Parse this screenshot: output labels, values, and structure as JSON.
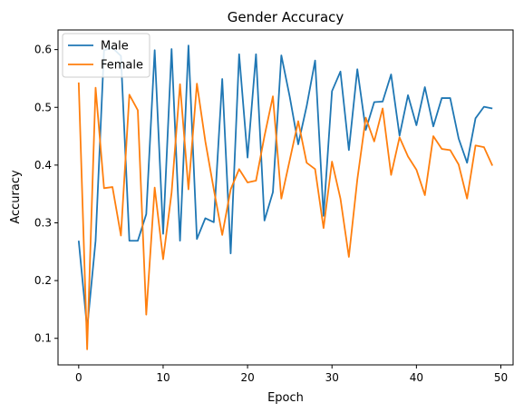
{
  "chart_data": {
    "type": "line",
    "title": "Gender Accuracy",
    "xlabel": "Epoch",
    "ylabel": "Accuracy",
    "xlim": [
      -2.45,
      51.45
    ],
    "ylim": [
      0.054,
      0.634
    ],
    "xticks": [
      0,
      10,
      20,
      30,
      40,
      50
    ],
    "yticks": [
      0.1,
      0.2,
      0.3,
      0.4,
      0.5,
      0.6
    ],
    "grid": false,
    "legend_position": "top-left",
    "x": [
      0,
      1,
      2,
      3,
      4,
      5,
      6,
      7,
      8,
      9,
      10,
      11,
      12,
      13,
      14,
      15,
      16,
      17,
      18,
      19,
      20,
      21,
      22,
      23,
      24,
      25,
      26,
      27,
      28,
      29,
      30,
      31,
      32,
      33,
      34,
      35,
      36,
      37,
      38,
      39,
      40,
      41,
      42,
      43,
      44,
      45,
      46,
      47,
      48,
      49
    ],
    "series": [
      {
        "name": "Male",
        "color": "#1f77b4",
        "values": [
          0.269,
          0.117,
          0.269,
          0.599,
          0.603,
          0.589,
          0.269,
          0.269,
          0.315,
          0.599,
          0.281,
          0.601,
          0.269,
          0.607,
          0.272,
          0.308,
          0.301,
          0.549,
          0.247,
          0.592,
          0.413,
          0.592,
          0.304,
          0.353,
          0.59,
          0.518,
          0.436,
          0.502,
          0.581,
          0.312,
          0.528,
          0.562,
          0.426,
          0.566,
          0.461,
          0.509,
          0.51,
          0.557,
          0.451,
          0.521,
          0.469,
          0.535,
          0.467,
          0.516,
          0.516,
          0.446,
          0.404,
          0.481,
          0.501,
          0.498
        ]
      },
      {
        "name": "Female",
        "color": "#ff7f0e",
        "values": [
          0.543,
          0.081,
          0.534,
          0.36,
          0.362,
          0.278,
          0.522,
          0.495,
          0.141,
          0.361,
          0.237,
          0.352,
          0.54,
          0.358,
          0.541,
          0.441,
          0.358,
          0.279,
          0.358,
          0.393,
          0.37,
          0.373,
          0.45,
          0.519,
          0.342,
          0.409,
          0.476,
          0.404,
          0.393,
          0.291,
          0.406,
          0.342,
          0.241,
          0.375,
          0.482,
          0.441,
          0.498,
          0.383,
          0.448,
          0.415,
          0.392,
          0.348,
          0.45,
          0.428,
          0.426,
          0.401,
          0.342,
          0.434,
          0.431,
          0.399
        ]
      }
    ]
  }
}
